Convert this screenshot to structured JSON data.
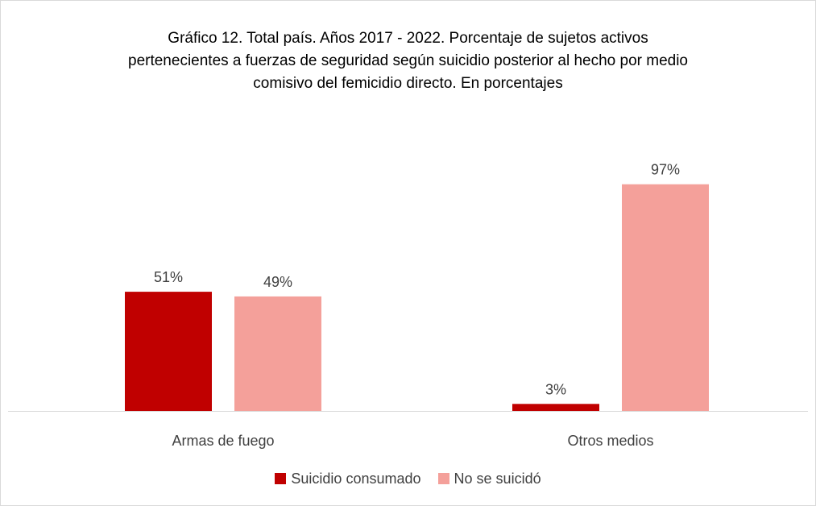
{
  "chart_data": {
    "type": "bar",
    "title_lines": [
      "Gráfico 12. Total país. Años 2017 - 2022. Porcentaje de sujetos activos",
      "pertenecientes a fuerzas de seguridad según suicidio posterior al hecho por medio",
      "comisivo del femicidio directo. En porcentajes"
    ],
    "categories": [
      "Armas de fuego",
      "Otros medios"
    ],
    "series": [
      {
        "name": "Suicidio consumado",
        "color": "#c00000",
        "values": [
          51,
          3
        ],
        "labels": [
          "51%",
          "3%"
        ]
      },
      {
        "name": "No se suicidó",
        "color": "#f4a09a",
        "values": [
          49,
          97
        ],
        "labels": [
          "49%",
          "97%"
        ]
      }
    ],
    "ylim": [
      0,
      100
    ],
    "grid": false,
    "legend": "bottom"
  }
}
